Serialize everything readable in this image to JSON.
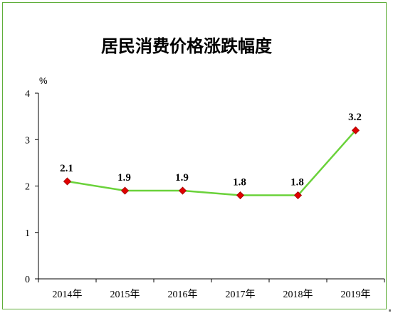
{
  "chart_data": {
    "type": "line",
    "title": "居民消费价格涨跌幅度",
    "unit": "%",
    "categories": [
      "2014年",
      "2015年",
      "2016年",
      "2017年",
      "2018年",
      "2019年"
    ],
    "values": [
      2.1,
      1.9,
      1.9,
      1.8,
      1.8,
      3.2
    ],
    "data_labels": [
      "2.1",
      "1.9",
      "1.9",
      "1.8",
      "1.8",
      "3.2"
    ],
    "ylim": [
      0,
      4
    ],
    "yticks": [
      "0",
      "1",
      "2",
      "3",
      "4"
    ],
    "grid": false,
    "colors": {
      "line": "#6ad23a",
      "marker": "#e00000",
      "marker_edge": "#a00000",
      "frame": "#5fae3a"
    }
  }
}
